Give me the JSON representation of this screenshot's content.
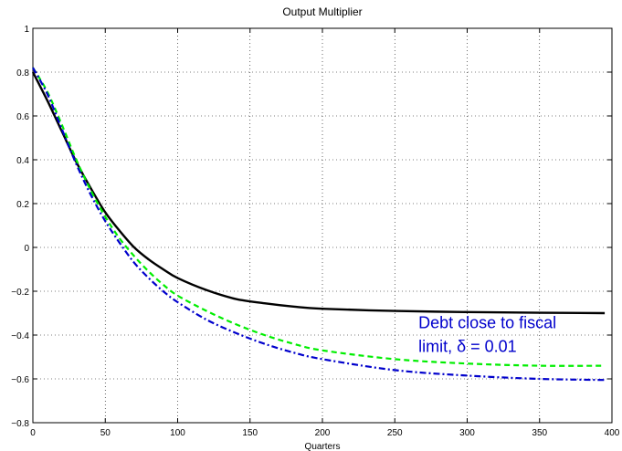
{
  "chart_data": {
    "type": "line",
    "title": "Output Multiplier",
    "xlabel": "Quarters",
    "ylabel": "",
    "xlim": [
      0,
      400
    ],
    "ylim": [
      -0.8,
      1
    ],
    "xticks": [
      0,
      50,
      100,
      150,
      200,
      250,
      300,
      350,
      400
    ],
    "yticks": [
      -0.8,
      -0.6,
      -0.4,
      -0.2,
      0,
      0.2,
      0.4,
      0.6,
      0.8,
      1
    ],
    "xtick_labels": [
      "0",
      "50",
      "100",
      "150",
      "200",
      "250",
      "300",
      "350",
      "400"
    ],
    "ytick_labels": [
      "−0.8",
      "−0.6",
      "−0.4",
      "−0.2",
      "0",
      "0.2",
      "0.4",
      "0.6",
      "0.8",
      "1"
    ],
    "grid": true,
    "series": [
      {
        "style": "solid",
        "color": "#000000",
        "x": [
          0,
          10,
          20,
          30,
          40,
          50,
          60,
          70,
          80,
          90,
          100,
          120,
          140,
          160,
          180,
          200,
          250,
          300,
          350,
          395
        ],
        "y": [
          0.8,
          0.67,
          0.53,
          0.39,
          0.27,
          0.16,
          0.075,
          0.0,
          -0.055,
          -0.1,
          -0.14,
          -0.195,
          -0.235,
          -0.255,
          -0.27,
          -0.28,
          -0.29,
          -0.295,
          -0.298,
          -0.3
        ]
      },
      {
        "style": "dashed",
        "color": "#00ee00",
        "x": [
          0,
          10,
          20,
          30,
          40,
          50,
          60,
          70,
          80,
          90,
          100,
          120,
          140,
          160,
          180,
          200,
          250,
          300,
          350,
          395
        ],
        "y": [
          0.82,
          0.71,
          0.56,
          0.4,
          0.26,
          0.14,
          0.04,
          -0.04,
          -0.11,
          -0.17,
          -0.22,
          -0.29,
          -0.35,
          -0.4,
          -0.44,
          -0.47,
          -0.51,
          -0.53,
          -0.54,
          -0.54
        ]
      },
      {
        "style": "dashdot",
        "color": "#0000cc",
        "x": [
          0,
          10,
          20,
          30,
          40,
          50,
          60,
          70,
          80,
          90,
          100,
          120,
          140,
          160,
          180,
          200,
          250,
          300,
          350,
          395
        ],
        "y": [
          0.82,
          0.7,
          0.54,
          0.38,
          0.24,
          0.12,
          0.02,
          -0.07,
          -0.14,
          -0.2,
          -0.25,
          -0.33,
          -0.39,
          -0.44,
          -0.48,
          -0.51,
          -0.56,
          -0.585,
          -0.6,
          -0.605
        ]
      }
    ],
    "annotation": {
      "line1": "Debt close to fiscal",
      "line2_prefix": "limit, ",
      "line2_symbol": "δ",
      "line2_suffix": " = 0.01",
      "color": "#0000cc",
      "x": 260,
      "y": -0.36
    }
  }
}
